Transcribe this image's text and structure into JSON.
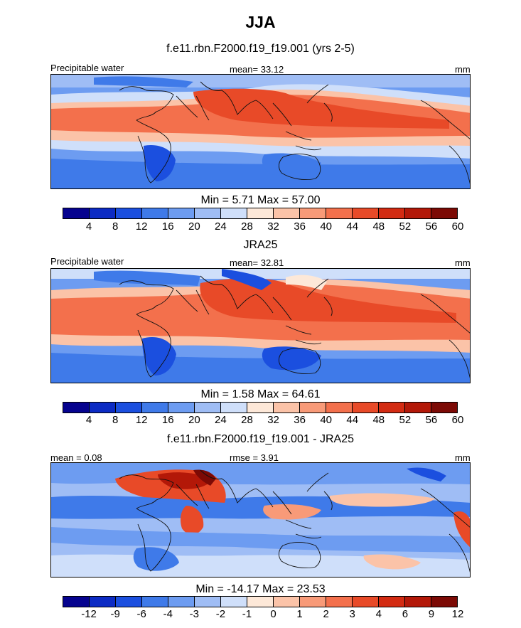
{
  "title": "JJA",
  "colors": {
    "palette": [
      "#06038f",
      "#0c2bc4",
      "#1b4fdf",
      "#3f7ae9",
      "#6d9cf1",
      "#9fbdf5",
      "#cfdffa",
      "#fde8d8",
      "#fbc3a8",
      "#f89a78",
      "#f3704c",
      "#e84a28",
      "#d32b12",
      "#b31808",
      "#7c0a05"
    ],
    "map_bg": "#f3f3f6",
    "coast": "#111111"
  },
  "panels": [
    {
      "subtitle": "f.e11.rbn.F2000.f19_f19.001 (yrs 2-5)",
      "left_label": "Precipitable water",
      "center_label": "mean=  33.12",
      "right_label": "mm",
      "minmax": "Min =   5.71 Max =  57.00",
      "ticks": [
        "4",
        "8",
        "12",
        "16",
        "20",
        "24",
        "28",
        "32",
        "36",
        "40",
        "44",
        "48",
        "52",
        "56",
        "60"
      ]
    },
    {
      "subtitle": "JRA25",
      "left_label": "Precipitable water",
      "center_label": "mean=  32.81",
      "right_label": "mm",
      "minmax": "Min =   1.58 Max =  64.61",
      "ticks": [
        "4",
        "8",
        "12",
        "16",
        "20",
        "24",
        "28",
        "32",
        "36",
        "40",
        "44",
        "48",
        "52",
        "56",
        "60"
      ]
    },
    {
      "subtitle": "f.e11.rbn.F2000.f19_f19.001 - JRA25",
      "left_label": "mean =   0.08",
      "center_label": "rmse =   3.91",
      "right_label": "mm",
      "minmax": "Min = -14.17 Max =  23.53",
      "ticks": [
        "-12",
        "-9",
        "-6",
        "-4",
        "-3",
        "-2",
        "-1",
        "0",
        "1",
        "2",
        "3",
        "4",
        "6",
        "9",
        "12"
      ]
    }
  ]
}
